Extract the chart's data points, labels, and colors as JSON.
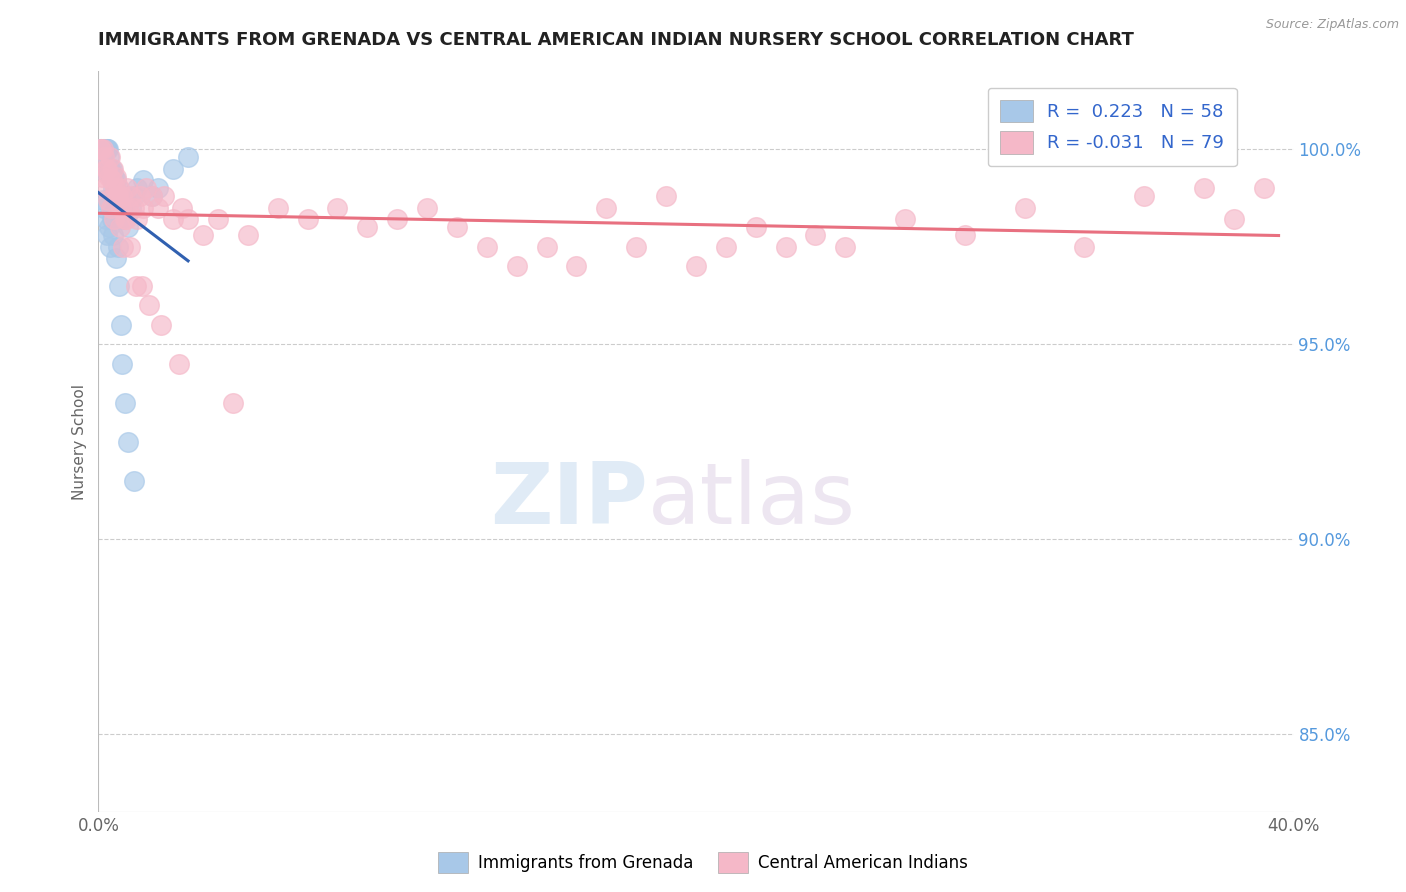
{
  "title": "IMMIGRANTS FROM GRENADA VS CENTRAL AMERICAN INDIAN NURSERY SCHOOL CORRELATION CHART",
  "source": "Source: ZipAtlas.com",
  "ylabel": "Nursery School",
  "xlim": [
    0.0,
    40.0
  ],
  "ylim": [
    83.0,
    102.0
  ],
  "yticks": [
    85.0,
    90.0,
    95.0,
    100.0
  ],
  "ytick_labels": [
    "85.0%",
    "90.0%",
    "95.0%",
    "100.0%"
  ],
  "xticks": [
    0.0,
    10.0,
    20.0,
    30.0,
    40.0
  ],
  "xtick_labels": [
    "0.0%",
    "",
    "",
    "",
    "40.0%"
  ],
  "blue_color": "#A8C8E8",
  "pink_color": "#F5B8C8",
  "blue_line_color": "#3060B0",
  "pink_line_color": "#E87080",
  "watermark_zip": "ZIP",
  "watermark_atlas": "atlas",
  "blue_x": [
    0.05,
    0.08,
    0.1,
    0.12,
    0.15,
    0.18,
    0.2,
    0.22,
    0.25,
    0.28,
    0.3,
    0.33,
    0.35,
    0.38,
    0.4,
    0.43,
    0.45,
    0.48,
    0.5,
    0.53,
    0.55,
    0.58,
    0.6,
    0.63,
    0.65,
    0.7,
    0.75,
    0.8,
    0.85,
    0.9,
    0.95,
    1.0,
    1.1,
    1.2,
    1.3,
    1.5,
    1.8,
    2.0,
    2.5,
    3.0,
    0.1,
    0.15,
    0.2,
    0.25,
    0.3,
    0.35,
    0.4,
    0.45,
    0.5,
    0.55,
    0.6,
    0.65,
    0.7,
    0.75,
    0.8,
    0.9,
    1.0,
    1.2
  ],
  "blue_y": [
    100.0,
    100.0,
    100.0,
    100.0,
    100.0,
    100.0,
    100.0,
    100.0,
    100.0,
    100.0,
    100.0,
    100.0,
    99.8,
    99.5,
    99.5,
    99.3,
    99.5,
    99.2,
    99.0,
    99.3,
    99.0,
    98.8,
    99.2,
    98.5,
    99.0,
    98.8,
    98.5,
    98.2,
    98.5,
    98.8,
    98.3,
    98.0,
    98.5,
    98.8,
    99.0,
    99.2,
    98.8,
    99.0,
    99.5,
    99.8,
    99.5,
    98.7,
    98.5,
    98.2,
    97.8,
    98.0,
    97.5,
    98.2,
    97.8,
    98.5,
    97.2,
    97.5,
    96.5,
    95.5,
    94.5,
    93.5,
    92.5,
    91.5
  ],
  "pink_x": [
    0.05,
    0.1,
    0.15,
    0.2,
    0.25,
    0.3,
    0.35,
    0.4,
    0.45,
    0.5,
    0.55,
    0.6,
    0.65,
    0.7,
    0.75,
    0.8,
    0.85,
    0.9,
    0.95,
    1.0,
    1.1,
    1.2,
    1.3,
    1.4,
    1.5,
    1.6,
    1.8,
    2.0,
    2.2,
    2.5,
    2.8,
    3.0,
    3.5,
    4.0,
    5.0,
    6.0,
    7.0,
    8.0,
    9.0,
    10.0,
    11.0,
    12.0,
    13.0,
    14.0,
    15.0,
    16.0,
    17.0,
    18.0,
    19.0,
    20.0,
    21.0,
    22.0,
    23.0,
    24.0,
    25.0,
    27.0,
    29.0,
    31.0,
    33.0,
    35.0,
    37.0,
    38.0,
    39.0,
    0.12,
    0.22,
    0.32,
    0.42,
    0.52,
    0.62,
    0.72,
    0.82,
    0.92,
    1.05,
    1.25,
    1.45,
    1.7,
    2.1,
    2.7,
    4.5
  ],
  "pink_y": [
    100.0,
    100.0,
    100.0,
    99.8,
    99.5,
    99.5,
    99.3,
    99.8,
    99.2,
    99.5,
    99.0,
    99.3,
    98.8,
    99.0,
    98.5,
    98.8,
    98.5,
    98.2,
    99.0,
    98.5,
    98.8,
    98.5,
    98.2,
    98.8,
    98.5,
    99.0,
    98.8,
    98.5,
    98.8,
    98.2,
    98.5,
    98.2,
    97.8,
    98.2,
    97.8,
    98.5,
    98.2,
    98.5,
    98.0,
    98.2,
    98.5,
    98.0,
    97.5,
    97.0,
    97.5,
    97.0,
    98.5,
    97.5,
    98.8,
    97.0,
    97.5,
    98.0,
    97.5,
    97.8,
    97.5,
    98.2,
    97.8,
    98.5,
    97.5,
    98.8,
    99.0,
    98.2,
    99.0,
    99.3,
    99.0,
    98.7,
    98.5,
    98.2,
    98.8,
    98.0,
    97.5,
    98.2,
    97.5,
    96.5,
    96.5,
    96.0,
    95.5,
    94.5,
    93.5
  ]
}
